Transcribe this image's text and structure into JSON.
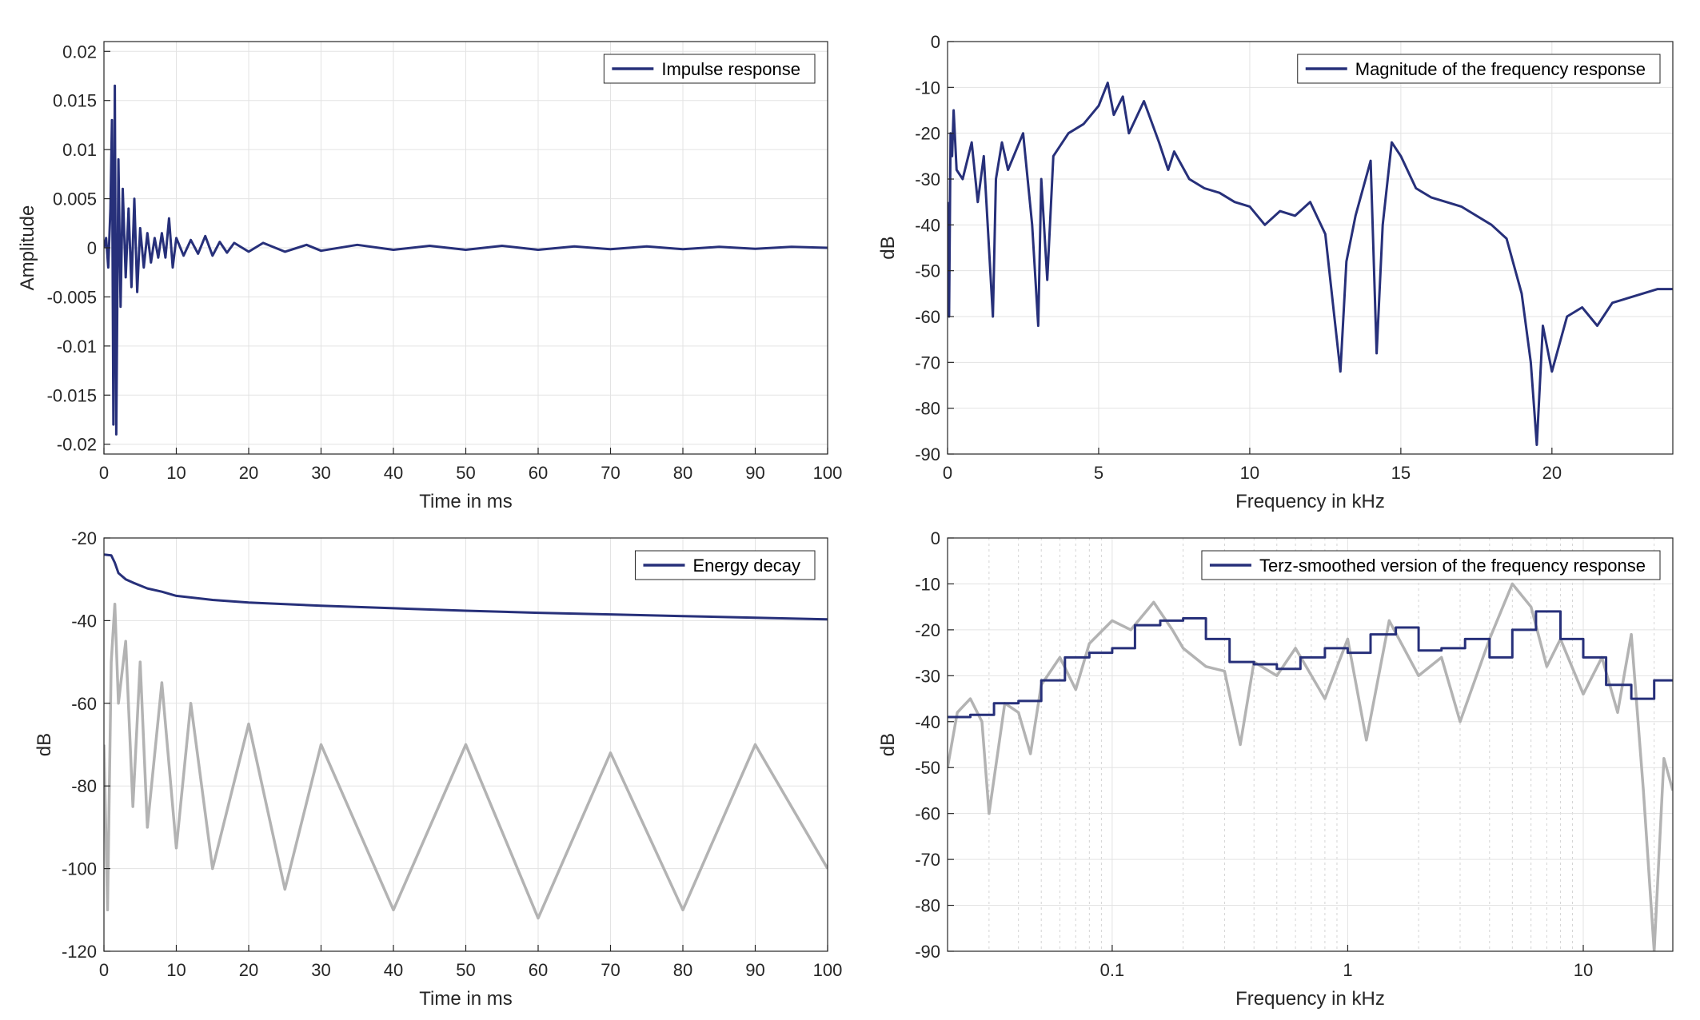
{
  "colors": {
    "series": "#27307a",
    "secondary": "#b3b3b3",
    "grid": "#e3e3e3",
    "axis": "#262626"
  },
  "chart_data": [
    {
      "type": "line",
      "legend": "Impulse response",
      "legend_position": "top-right",
      "xlabel": "Time in ms",
      "ylabel": "Amplitude",
      "xlim": [
        0,
        100
      ],
      "ylim": [
        -0.021,
        0.021
      ],
      "xticks": [
        0,
        10,
        20,
        30,
        40,
        50,
        60,
        70,
        80,
        90,
        100
      ],
      "xtick_labels": [
        "0",
        "10",
        "20",
        "30",
        "40",
        "50",
        "60",
        "70",
        "80",
        "90",
        "100"
      ],
      "yticks": [
        0.02,
        0.015,
        0.01,
        0.005,
        0,
        -0.005,
        -0.01,
        -0.015,
        -0.02
      ],
      "ytick_labels": [
        "0.02",
        "0.015",
        "0.01",
        "0.005",
        "0",
        "-0.005",
        "-0.01",
        "-0.015",
        "-0.02"
      ],
      "grid": true,
      "series": [
        {
          "x": [
            0,
            0.3,
            0.6,
            0.9,
            1.1,
            1.3,
            1.5,
            1.7,
            2.0,
            2.3,
            2.6,
            3.0,
            3.4,
            3.8,
            4.2,
            4.6,
            5.0,
            5.5,
            6.0,
            6.5,
            7.0,
            7.5,
            8.0,
            8.5,
            9.0,
            9.5,
            10,
            11,
            12,
            13,
            14,
            15,
            16,
            17,
            18,
            20,
            22,
            25,
            28,
            30,
            35,
            40,
            45,
            50,
            55,
            60,
            65,
            70,
            75,
            80,
            85,
            90,
            95,
            100
          ],
          "y": [
            0,
            0.001,
            -0.002,
            0.004,
            0.013,
            -0.018,
            0.0165,
            -0.019,
            0.009,
            -0.006,
            0.006,
            -0.003,
            0.004,
            -0.004,
            0.005,
            -0.0045,
            0.002,
            -0.002,
            0.0015,
            -0.0015,
            0.001,
            -0.001,
            0.0015,
            -0.001,
            0.003,
            -0.002,
            0.001,
            -0.0008,
            0.0008,
            -0.0006,
            0.0012,
            -0.0008,
            0.0006,
            -0.0005,
            0.0005,
            -0.0004,
            0.0005,
            -0.0004,
            0.0003,
            -0.0003,
            0.0003,
            -0.0002,
            0.0002,
            -0.0002,
            0.0002,
            -0.0002,
            0.00015,
            -0.00015,
            0.00015,
            -0.00015,
            0.0001,
            -0.0001,
            0.0001,
            0
          ]
        }
      ]
    },
    {
      "type": "line",
      "legend": "Magnitude of the frequency response",
      "legend_position": "top-right",
      "xlabel": "Frequency in kHz",
      "ylabel": "dB",
      "xlim": [
        0,
        24
      ],
      "ylim": [
        -90,
        0
      ],
      "xticks": [
        0,
        5,
        10,
        15,
        20
      ],
      "xtick_labels": [
        "0",
        "5",
        "10",
        "15",
        "20"
      ],
      "yticks": [
        0,
        -10,
        -20,
        -30,
        -40,
        -50,
        -60,
        -70,
        -80,
        -90
      ],
      "ytick_labels": [
        "0",
        "-10",
        "-20",
        "-30",
        "-40",
        "-50",
        "-60",
        "-70",
        "-80",
        "-90"
      ],
      "grid": true,
      "series": [
        {
          "x": [
            0,
            0.05,
            0.1,
            0.15,
            0.2,
            0.3,
            0.5,
            0.8,
            1.0,
            1.2,
            1.5,
            1.6,
            1.8,
            2.0,
            2.5,
            2.8,
            3.0,
            3.1,
            3.3,
            3.5,
            4.0,
            4.5,
            5.0,
            5.3,
            5.5,
            5.8,
            6.0,
            6.5,
            7.0,
            7.3,
            7.5,
            8.0,
            8.5,
            9.0,
            9.5,
            10.0,
            10.5,
            11.0,
            11.5,
            12.0,
            12.5,
            12.8,
            13.0,
            13.2,
            13.5,
            14.0,
            14.2,
            14.4,
            14.7,
            15.0,
            15.5,
            16.0,
            17.0,
            18.0,
            18.5,
            19.0,
            19.3,
            19.5,
            19.7,
            20.0,
            20.5,
            21.0,
            21.5,
            22.0,
            22.5,
            23.0,
            23.5,
            24.0
          ],
          "y": [
            -35,
            -60,
            -20,
            -25,
            -15,
            -28,
            -30,
            -22,
            -35,
            -25,
            -60,
            -30,
            -22,
            -28,
            -20,
            -40,
            -62,
            -30,
            -52,
            -25,
            -20,
            -18,
            -14,
            -9,
            -16,
            -12,
            -20,
            -13,
            -22,
            -28,
            -24,
            -30,
            -32,
            -33,
            -35,
            -36,
            -40,
            -37,
            -38,
            -35,
            -42,
            -60,
            -72,
            -48,
            -38,
            -26,
            -68,
            -40,
            -22,
            -25,
            -32,
            -34,
            -36,
            -40,
            -43,
            -55,
            -70,
            -88,
            -62,
            -72,
            -60,
            -58,
            -62,
            -57,
            -56,
            -55,
            -54,
            -54
          ]
        }
      ]
    },
    {
      "type": "line",
      "legend": "Energy decay",
      "legend_position": "top-right",
      "xlabel": "Time in ms",
      "ylabel": "dB",
      "xlim": [
        0,
        100
      ],
      "ylim": [
        -120,
        -20
      ],
      "xticks": [
        0,
        10,
        20,
        30,
        40,
        50,
        60,
        70,
        80,
        90,
        100
      ],
      "xtick_labels": [
        "0",
        "10",
        "20",
        "30",
        "40",
        "50",
        "60",
        "70",
        "80",
        "90",
        "100"
      ],
      "yticks": [
        -20,
        -40,
        -60,
        -80,
        -100,
        -120
      ],
      "ytick_labels": [
        "-20",
        "-40",
        "-60",
        "-80",
        "-100",
        "-120"
      ],
      "grid": true,
      "series": [
        {
          "name": "Energy decay",
          "x": [
            0,
            1,
            1.5,
            2,
            3,
            4,
            5,
            6,
            8,
            10,
            15,
            20,
            30,
            40,
            50,
            60,
            70,
            80,
            90,
            100
          ],
          "y": [
            -24,
            -24.2,
            -26,
            -28.5,
            -30,
            -30.8,
            -31.5,
            -32.2,
            -33,
            -34,
            -35,
            -35.6,
            -36.4,
            -37,
            -37.6,
            -38.1,
            -38.5,
            -38.9,
            -39.3,
            -39.7
          ]
        },
        {
          "x": [
            0,
            0.5,
            1,
            1.5,
            2,
            3,
            4,
            5,
            6,
            8,
            10,
            12,
            15,
            20,
            25,
            30,
            40,
            50,
            60,
            70,
            80,
            90,
            100
          ],
          "y": [
            -70,
            -110,
            -50,
            -36,
            -60,
            -45,
            -85,
            -50,
            -90,
            -55,
            -95,
            -60,
            -100,
            -65,
            -105,
            -70,
            -110,
            -70,
            -112,
            -72,
            -110,
            -70,
            -100
          ]
        }
      ]
    },
    {
      "type": "line",
      "legend": "Terz-smoothed version of the frequency response",
      "legend_position": "top-right",
      "xlabel": "Frequency in kHz",
      "ylabel": "dB",
      "xscale": "log",
      "xlim": [
        0.02,
        24
      ],
      "ylim": [
        -90,
        0
      ],
      "xticks": [
        0.1,
        1,
        10
      ],
      "xtick_labels": [
        "0.1",
        "1",
        "10"
      ],
      "yticks": [
        0,
        -10,
        -20,
        -30,
        -40,
        -50,
        -60,
        -70,
        -80,
        -90
      ],
      "ytick_labels": [
        "0",
        "-10",
        "-20",
        "-30",
        "-40",
        "-50",
        "-60",
        "-70",
        "-80",
        "-90"
      ],
      "grid": true,
      "series": [
        {
          "name": "Terz-smoothed version of the frequency response",
          "x": [
            0.02,
            0.025,
            0.0315,
            0.04,
            0.05,
            0.063,
            0.08,
            0.1,
            0.125,
            0.16,
            0.2,
            0.25,
            0.315,
            0.4,
            0.5,
            0.63,
            0.8,
            1.0,
            1.25,
            1.6,
            2.0,
            2.5,
            3.15,
            4.0,
            5.0,
            6.3,
            8.0,
            10.0,
            12.5,
            16.0,
            20.0
          ],
          "y": [
            -39,
            -38.5,
            -36,
            -35.5,
            -31,
            -26,
            -25,
            -24,
            -19,
            -18,
            -17.5,
            -22,
            -27,
            -27.5,
            -28.5,
            -26,
            -24,
            -25,
            -21,
            -19.5,
            -24.5,
            -24,
            -22,
            -26,
            -20,
            -16,
            -22,
            -26,
            -32,
            -35,
            -31
          ]
        },
        {
          "x": [
            0.02,
            0.022,
            0.025,
            0.028,
            0.03,
            0.035,
            0.04,
            0.045,
            0.05,
            0.06,
            0.07,
            0.08,
            0.1,
            0.12,
            0.15,
            0.18,
            0.2,
            0.25,
            0.3,
            0.35,
            0.4,
            0.5,
            0.6,
            0.8,
            1.0,
            1.2,
            1.5,
            2.0,
            2.5,
            3.0,
            4.0,
            5.0,
            6.0,
            7.0,
            8.0,
            10.0,
            12.0,
            14.0,
            16.0,
            18.0,
            20.0,
            22.0,
            24.0
          ],
          "y": [
            -50,
            -38,
            -35,
            -40,
            -60,
            -36,
            -38,
            -47,
            -32,
            -26,
            -33,
            -23,
            -18,
            -20,
            -14,
            -20,
            -24,
            -28,
            -29,
            -45,
            -27,
            -30,
            -24,
            -35,
            -22,
            -44,
            -18,
            -30,
            -26,
            -40,
            -22,
            -10,
            -15,
            -28,
            -22,
            -34,
            -26,
            -38,
            -21,
            -55,
            -90,
            -48,
            -55
          ]
        }
      ]
    }
  ]
}
